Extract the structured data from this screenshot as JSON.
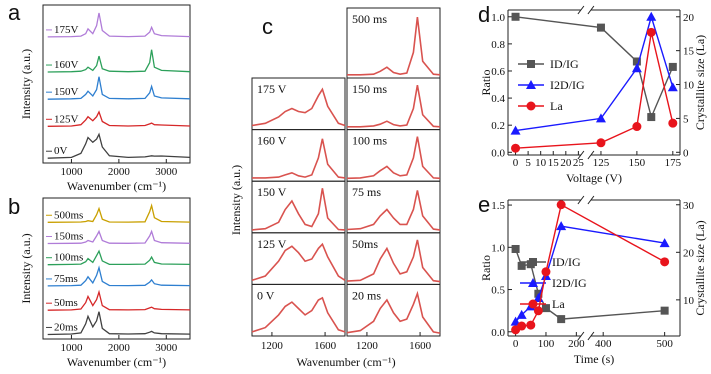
{
  "chart_data": [
    {
      "type": "line",
      "label": "a",
      "x": [
        500,
        1000,
        1200,
        1300,
        1350,
        1450,
        1530,
        1580,
        1650,
        1800,
        2200,
        2550,
        2650,
        2690,
        2750,
        2900,
        3500
      ],
      "xlim": [
        400,
        3500
      ],
      "xticks": [
        1000,
        2000,
        3000
      ],
      "ylim": [
        -0.3,
        9.6
      ],
      "xlabel": "Wavenumber (cm⁻¹)",
      "ylabel": "Intensity (a.u.)",
      "series": [
        {
          "name": "175V",
          "color": "#b07cd8",
          "values": [
            7.6,
            7.62,
            7.65,
            7.8,
            8.1,
            7.8,
            8.3,
            9.1,
            8.0,
            7.65,
            7.62,
            7.65,
            7.9,
            8.2,
            7.8,
            7.68,
            7.62
          ]
        },
        {
          "name": "160V",
          "color": "#2ca05a",
          "values": [
            5.4,
            5.42,
            5.45,
            5.55,
            5.7,
            5.5,
            5.8,
            6.4,
            5.6,
            5.45,
            5.42,
            5.45,
            6.0,
            6.8,
            5.7,
            5.5,
            5.42
          ]
        },
        {
          "name": "150V",
          "color": "#2e7fd0",
          "values": [
            3.7,
            3.72,
            3.75,
            4.0,
            4.2,
            3.9,
            4.3,
            5.1,
            4.0,
            3.75,
            3.72,
            3.75,
            4.1,
            4.5,
            3.9,
            3.78,
            3.72
          ]
        },
        {
          "name": "125V",
          "color": "#d62728",
          "values": [
            2,
            2.02,
            2.1,
            2.4,
            2.6,
            2.35,
            2.6,
            2.9,
            2.3,
            2.05,
            2.02,
            2.05,
            2.15,
            2.2,
            2.1,
            2.08,
            2.02
          ]
        },
        {
          "name": "0V",
          "color": "#404040",
          "values": [
            0,
            0.05,
            0.3,
            0.9,
            1.3,
            1.0,
            1.2,
            1.5,
            0.7,
            0.15,
            0.05,
            0.08,
            0.13,
            0.15,
            0.13,
            0.14,
            0.05
          ]
        }
      ]
    },
    {
      "type": "line",
      "label": "b",
      "x": [
        500,
        1000,
        1200,
        1300,
        1350,
        1450,
        1530,
        1580,
        1650,
        1800,
        2200,
        2550,
        2650,
        2690,
        2750,
        2900,
        3500
      ],
      "xlim": [
        400,
        3500
      ],
      "xticks": [
        1000,
        2000,
        3000
      ],
      "ylim": [
        -0.3,
        9.0
      ],
      "xlabel": "Wavenumber (cm⁻¹)",
      "ylabel": "Intensity (a.u.)",
      "series": [
        {
          "name": "500ms",
          "color": "#c9a000",
          "values": [
            7.4,
            7.41,
            7.42,
            7.45,
            7.5,
            7.45,
            7.9,
            8.3,
            7.6,
            7.42,
            7.41,
            7.43,
            8.1,
            8.5,
            7.7,
            7.45,
            7.41
          ]
        },
        {
          "name": "150ms",
          "color": "#b07cd8",
          "values": [
            6.0,
            6.01,
            6.02,
            6.1,
            6.2,
            6.1,
            6.5,
            6.8,
            6.2,
            6.02,
            6.01,
            6.03,
            6.5,
            6.8,
            6.2,
            6.05,
            6.01
          ]
        },
        {
          "name": "100ms",
          "color": "#2ca05a",
          "values": [
            4.6,
            4.62,
            4.64,
            4.8,
            5.0,
            4.75,
            5.2,
            5.5,
            4.85,
            4.63,
            4.62,
            4.64,
            4.9,
            5.1,
            4.75,
            4.65,
            4.62
          ]
        },
        {
          "name": "75ms",
          "color": "#2e7fd0",
          "values": [
            3.2,
            3.22,
            3.25,
            3.55,
            3.8,
            3.4,
            3.9,
            4.4,
            3.5,
            3.23,
            3.22,
            3.24,
            3.45,
            3.6,
            3.35,
            3.25,
            3.22
          ]
        },
        {
          "name": "50ms",
          "color": "#d62728",
          "values": [
            1.6,
            1.62,
            1.68,
            2.1,
            2.5,
            1.9,
            2.3,
            2.8,
            1.9,
            1.63,
            1.62,
            1.64,
            1.75,
            1.8,
            1.7,
            1.65,
            1.62
          ]
        },
        {
          "name": "20ms",
          "color": "#404040",
          "values": [
            0,
            0.03,
            0.1,
            0.7,
            1.2,
            0.5,
            0.9,
            1.5,
            0.4,
            0.05,
            0.03,
            0.05,
            0.15,
            0.2,
            0.1,
            0.05,
            0.02
          ]
        }
      ]
    },
    {
      "type": "panels",
      "label": "c",
      "x": [
        1050,
        1150,
        1250,
        1300,
        1350,
        1400,
        1450,
        1500,
        1550,
        1580,
        1620,
        1700,
        1750
      ],
      "xlim": [
        1050,
        1750
      ],
      "xticks": [
        1200,
        1600
      ],
      "ylim": [
        0,
        1.12
      ],
      "xlabel": "Wavenumber (cm⁻¹)",
      "ylabel": "Intensity (a.u.)",
      "color": "#d9534f",
      "series": [
        {
          "name": "175 V",
          "values": [
            0.05,
            0.1,
            0.25,
            0.38,
            0.45,
            0.38,
            0.35,
            0.45,
            0.75,
            0.9,
            0.5,
            0.1,
            0.05
          ]
        },
        {
          "name": "160 V",
          "values": [
            0.03,
            0.03,
            0.05,
            0.1,
            0.15,
            0.08,
            0.05,
            0.1,
            0.5,
            0.95,
            0.35,
            0.05,
            0.03
          ]
        },
        {
          "name": "150 V",
          "values": [
            0.02,
            0.05,
            0.2,
            0.5,
            0.7,
            0.4,
            0.15,
            0.1,
            0.4,
            1.0,
            0.3,
            0.03,
            0.02
          ]
        },
        {
          "name": "125 V",
          "values": [
            0.05,
            0.15,
            0.5,
            0.75,
            0.85,
            0.7,
            0.5,
            0.55,
            0.8,
            0.9,
            0.6,
            0.15,
            0.05
          ]
        },
        {
          "name": "0 V",
          "values": [
            0.05,
            0.15,
            0.45,
            0.65,
            0.75,
            0.6,
            0.45,
            0.55,
            0.8,
            0.85,
            0.5,
            0.1,
            0.05
          ]
        },
        {
          "name": "500 ms",
          "values": [
            0.02,
            0.02,
            0.03,
            0.08,
            0.15,
            0.06,
            0.03,
            0.05,
            0.4,
            1.0,
            0.25,
            0.03,
            0.02
          ]
        },
        {
          "name": "150 ms",
          "values": [
            0.02,
            0.02,
            0.04,
            0.08,
            0.15,
            0.07,
            0.04,
            0.06,
            0.45,
            1.0,
            0.3,
            0.03,
            0.02
          ]
        },
        {
          "name": "100 ms",
          "values": [
            0.02,
            0.03,
            0.08,
            0.2,
            0.3,
            0.15,
            0.08,
            0.1,
            0.5,
            1.0,
            0.3,
            0.03,
            0.02
          ]
        },
        {
          "name": "75 ms",
          "values": [
            0.03,
            0.05,
            0.15,
            0.35,
            0.5,
            0.3,
            0.15,
            0.15,
            0.5,
            0.95,
            0.35,
            0.04,
            0.02
          ]
        },
        {
          "name": "50ms",
          "values": [
            0.03,
            0.05,
            0.2,
            0.55,
            0.8,
            0.45,
            0.2,
            0.25,
            0.6,
            1.0,
            0.35,
            0.04,
            0.02
          ]
        },
        {
          "name": "20 ms",
          "values": [
            0.03,
            0.08,
            0.3,
            0.6,
            0.8,
            0.5,
            0.3,
            0.35,
            0.7,
            0.95,
            0.4,
            0.05,
            0.02
          ]
        }
      ]
    },
    {
      "type": "line",
      "label": "d",
      "x": [
        0,
        125,
        150,
        160,
        175
      ],
      "xlim": [
        -3,
        180
      ],
      "xbreak": [
        26,
        118
      ],
      "xticks": [
        0,
        5,
        10,
        15,
        20,
        25,
        125,
        150,
        175
      ],
      "xlabel": "Voltage (V)",
      "ylabel": "Ratio",
      "y2label": "Crystallite size (La)",
      "ylim": [
        -0.02,
        1.05
      ],
      "yticks": [
        {
          "value": 0,
          "label": "0.0"
        },
        {
          "value": 0.2,
          "label": "0.2"
        },
        {
          "value": 0.4,
          "label": "0.4"
        },
        {
          "value": 0.6,
          "label": "0.6"
        },
        {
          "value": 0.8,
          "label": "0.8"
        },
        {
          "value": 1,
          "label": "1.0"
        }
      ],
      "y2lim": [
        -0.4,
        21
      ],
      "y2ticks": [
        0,
        5,
        10,
        15,
        20
      ],
      "legend": "center-left",
      "series": [
        {
          "name": "ID/IG",
          "color": "#555555",
          "marker": "square",
          "values": [
            1.0,
            0.92,
            0.67,
            0.26,
            0.63
          ]
        },
        {
          "name": "I2D/IG",
          "color": "#1a1aff",
          "marker": "triangle",
          "values": [
            0.16,
            0.25,
            0.62,
            1.0,
            0.48
          ]
        },
        {
          "name": "La",
          "color": "#e8141c",
          "marker": "circle",
          "axis": "y2",
          "values": [
            0.6,
            1.4,
            3.8,
            17.7,
            4.3
          ]
        }
      ]
    },
    {
      "type": "line",
      "label": "e",
      "x": [
        0,
        20,
        50,
        75,
        100,
        150,
        500
      ],
      "xlim": [
        -25,
        525
      ],
      "xbreak": [
        215,
        380
      ],
      "xticks": [
        0,
        100,
        200,
        400,
        500
      ],
      "xlabel": "Time (s)",
      "ylabel": "Ratio",
      "y2label": "Crystallite size (La)",
      "ylim": [
        -0.05,
        1.56
      ],
      "yticks": [
        {
          "value": 0,
          "label": "0.0"
        },
        {
          "value": 0.5,
          "label": "0.5"
        },
        {
          "value": 1,
          "label": "1.0"
        },
        {
          "value": 1.5,
          "label": "1.5"
        }
      ],
      "y2lim": [
        2.4,
        31
      ],
      "y2ticks": [
        10,
        20,
        30
      ],
      "legend": "center-left",
      "series": [
        {
          "name": "ID/IG",
          "color": "#555555",
          "marker": "square",
          "values": [
            0.98,
            0.78,
            0.8,
            0.45,
            0.28,
            0.15,
            0.25
          ]
        },
        {
          "name": "I2D/IG",
          "color": "#1a1aff",
          "marker": "triangle",
          "values": [
            0.12,
            0.2,
            0.3,
            0.4,
            0.66,
            1.25,
            1.05
          ]
        },
        {
          "name": "La",
          "color": "#e8141c",
          "marker": "circle",
          "axis": "y2",
          "values": [
            3.7,
            4.5,
            4.7,
            7.7,
            15.9,
            30,
            18
          ]
        }
      ]
    }
  ]
}
